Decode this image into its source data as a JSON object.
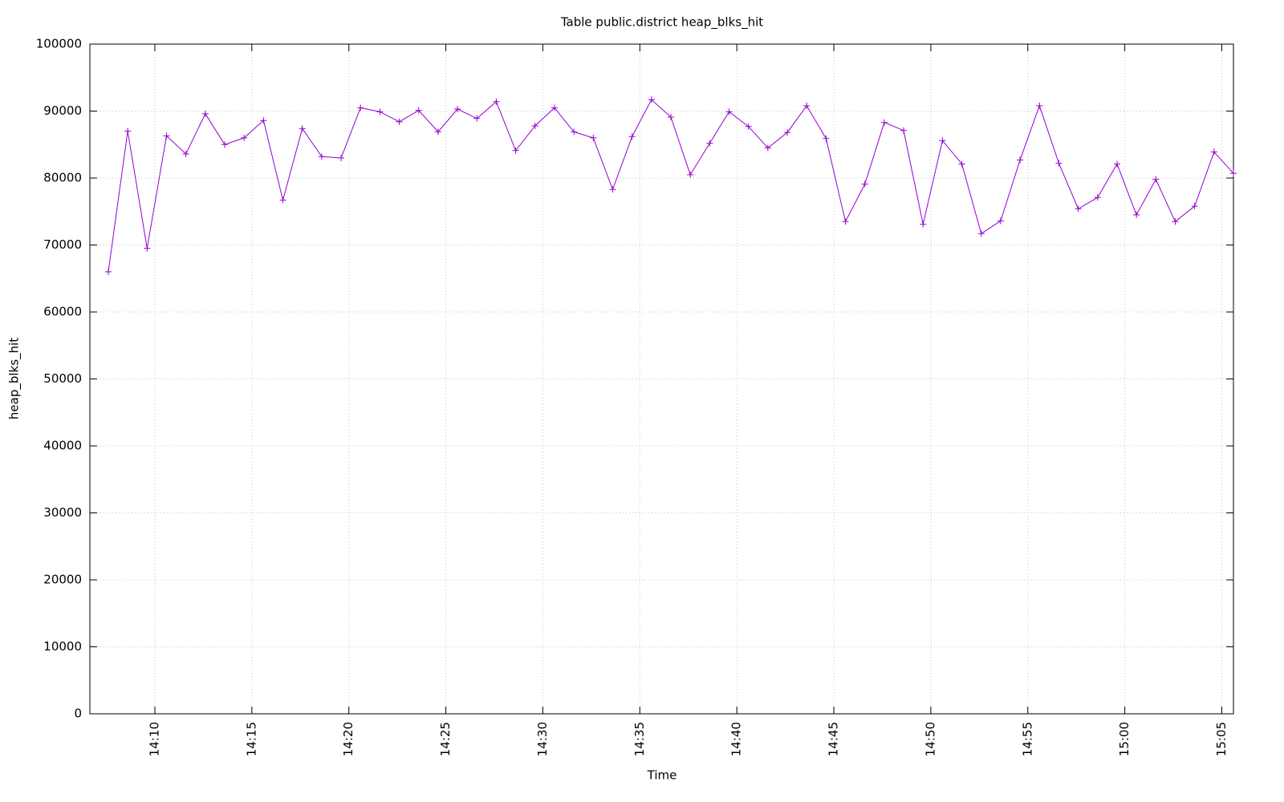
{
  "chart_data": {
    "type": "line",
    "title": "Table public.district heap_blks_hit",
    "x_label": "Time",
    "y_label": "heap_blks_hit",
    "x": [
      7.6,
      8.6,
      9.6,
      10.6,
      11.6,
      12.6,
      13.6,
      14.6,
      15.6,
      16.6,
      17.6,
      18.6,
      19.6,
      20.6,
      21.6,
      22.6,
      23.6,
      24.6,
      25.6,
      26.6,
      27.6,
      28.6,
      29.6,
      30.6,
      31.6,
      32.6,
      33.6,
      34.6,
      35.6,
      36.6,
      37.6,
      38.6,
      39.6,
      40.6,
      41.6,
      42.6,
      43.6,
      44.6,
      45.6,
      46.6,
      47.6,
      48.6,
      49.6,
      50.6,
      51.6,
      52.6,
      53.6,
      54.6,
      55.6,
      56.6,
      57.6,
      58.6,
      59.6,
      60.6,
      61.6,
      62.6,
      63.6,
      64.6,
      65.6
    ],
    "series": [
      {
        "name": "heap_blks_hit",
        "color": "#9400d3",
        "values": [
          66000,
          87000,
          69500,
          86300,
          83600,
          89600,
          85000,
          86000,
          88600,
          76700,
          87400,
          83200,
          83000,
          90500,
          89900,
          88400,
          90100,
          86900,
          90300,
          88900,
          91400,
          84100,
          87800,
          90500,
          86900,
          86000,
          78300,
          86200,
          91700,
          89100,
          80500,
          85200,
          89900,
          87700,
          84500,
          86800,
          90800,
          85900,
          73500,
          79100,
          88300,
          87100,
          73100,
          85600,
          82100,
          71700,
          73600,
          82700,
          90800,
          82200,
          75400,
          77100,
          82100,
          74500,
          79800,
          73500,
          75800,
          83900,
          80700
        ]
      }
    ],
    "xlim": [
      6.65,
      65.6
    ],
    "xticks": [
      {
        "value": 10,
        "label": "14:10"
      },
      {
        "value": 15,
        "label": "14:15"
      },
      {
        "value": 20,
        "label": "14:20"
      },
      {
        "value": 25,
        "label": "14:25"
      },
      {
        "value": 30,
        "label": "14:30"
      },
      {
        "value": 35,
        "label": "14:35"
      },
      {
        "value": 40,
        "label": "14:40"
      },
      {
        "value": 45,
        "label": "14:45"
      },
      {
        "value": 50,
        "label": "14:50"
      },
      {
        "value": 55,
        "label": "14:55"
      },
      {
        "value": 60,
        "label": "15:00"
      },
      {
        "value": 65,
        "label": "15:05"
      }
    ],
    "ylim": [
      0,
      100000
    ],
    "yticks": [
      0,
      10000,
      20000,
      30000,
      40000,
      50000,
      60000,
      70000,
      80000,
      90000,
      100000
    ],
    "grid": true,
    "marker": "+"
  }
}
